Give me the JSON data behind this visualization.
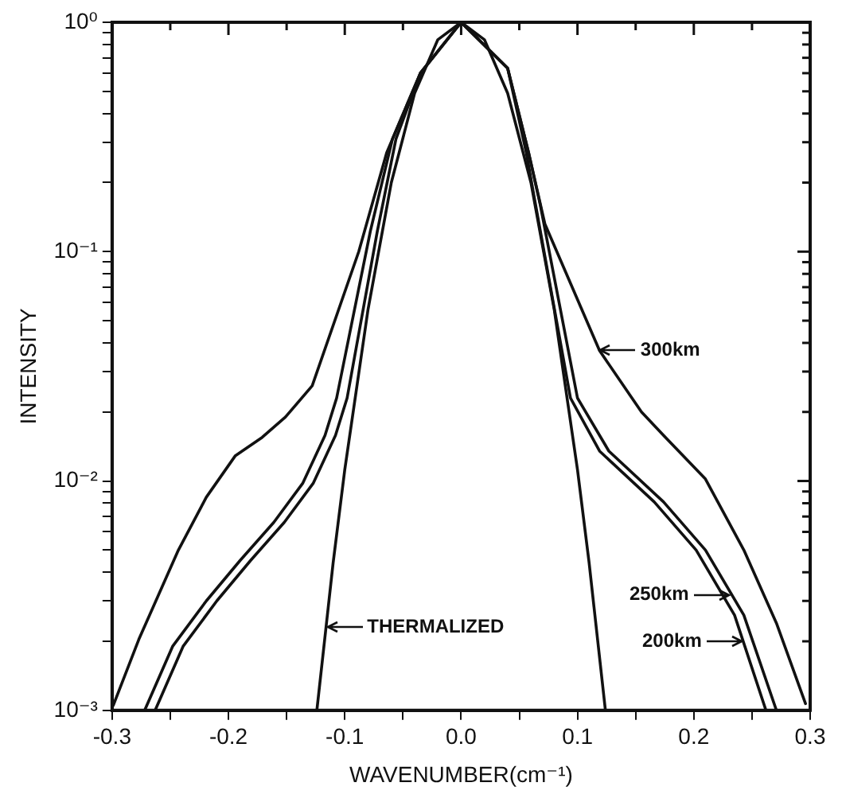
{
  "chart_data": {
    "type": "line",
    "xlabel": "WAVENUMBER(cm⁻¹)",
    "ylabel": "INTENSITY",
    "log": "y",
    "grid": false,
    "legend": false,
    "marker": "none",
    "line_style": "solid",
    "xlim": [
      -0.3,
      0.3
    ],
    "ylim": [
      0.001,
      1
    ],
    "xticks": [
      -0.3,
      {
        "value": -0.25,
        "label": null
      },
      -0.2,
      {
        "value": -0.15,
        "label": null
      },
      -0.1,
      {
        "value": -0.05,
        "label": null
      },
      {
        "value": 0,
        "label": "0.0"
      },
      {
        "value": 0.05,
        "label": null
      },
      0.1,
      {
        "value": 0.15,
        "label": null
      },
      0.2,
      {
        "value": 0.25,
        "label": null
      },
      0.3
    ],
    "yticks": [
      {
        "value": 0.001,
        "label": "10⁻³"
      },
      {
        "value": 0.002,
        "label": null
      },
      {
        "value": 0.003,
        "label": null
      },
      {
        "value": 0.004,
        "label": null
      },
      {
        "value": 0.005,
        "label": null
      },
      {
        "value": 0.006,
        "label": null
      },
      {
        "value": 0.007,
        "label": null
      },
      {
        "value": 0.008,
        "label": null
      },
      {
        "value": 0.009,
        "label": null
      },
      {
        "value": 0.01,
        "label": "10⁻²"
      },
      {
        "value": 0.02,
        "label": null
      },
      {
        "value": 0.03,
        "label": null
      },
      {
        "value": 0.04,
        "label": null
      },
      {
        "value": 0.05,
        "label": null
      },
      {
        "value": 0.06,
        "label": null
      },
      {
        "value": 0.07,
        "label": null
      },
      {
        "value": 0.08,
        "label": null
      },
      {
        "value": 0.09,
        "label": null
      },
      {
        "value": 0.1,
        "label": "10⁻¹"
      },
      {
        "value": 0.2,
        "label": null
      },
      {
        "value": 0.3,
        "label": null
      },
      {
        "value": 0.4,
        "label": null
      },
      {
        "value": 0.5,
        "label": null
      },
      {
        "value": 0.6,
        "label": null
      },
      {
        "value": 0.7,
        "label": null
      },
      {
        "value": 0.8,
        "label": null
      },
      {
        "value": 0.9,
        "label": null
      },
      {
        "value": 1,
        "label": "10⁰"
      }
    ],
    "series": [
      {
        "color": "#111111",
        "x": [
          -0.299,
          -0.277,
          -0.243,
          -0.219,
          -0.194,
          -0.171,
          -0.151,
          -0.128,
          -0.088,
          -0.064,
          -0.035,
          0,
          0.04,
          0.058,
          0.072,
          0.119,
          0.155,
          0.174,
          0.21,
          0.243,
          0.271,
          0.296
        ],
        "values": [
          0.00105,
          0.00204,
          0.005,
          0.0085,
          0.0129,
          0.0155,
          0.019,
          0.026,
          0.1,
          0.27,
          0.6,
          1,
          0.63,
          0.27,
          0.132,
          0.037,
          0.02,
          0.0158,
          0.0102,
          0.005,
          0.0024,
          0.00107
        ]
      },
      {
        "color": "#111111",
        "x": [
          -0.272,
          -0.248,
          -0.219,
          -0.19,
          -0.161,
          -0.136,
          -0.117,
          -0.107,
          -0.078,
          -0.059,
          -0.035,
          0,
          0.04,
          0.058,
          0.068,
          0.1,
          0.127,
          0.174,
          0.21,
          0.243,
          0.271
        ],
        "values": [
          0.001,
          0.0019,
          0.003,
          0.0045,
          0.0066,
          0.0098,
          0.0158,
          0.023,
          0.123,
          0.31,
          0.6,
          1,
          0.63,
          0.27,
          0.16,
          0.023,
          0.0135,
          0.0081,
          0.005,
          0.0026,
          0.001
        ]
      },
      {
        "color": "#111111",
        "x": [
          -0.263,
          -0.239,
          -0.21,
          -0.181,
          -0.152,
          -0.127,
          -0.108,
          -0.098,
          -0.072,
          -0.056,
          -0.035,
          0,
          0.04,
          0.056,
          0.064,
          0.094,
          0.119,
          0.166,
          0.202,
          0.235,
          0.262
        ],
        "values": [
          0.001,
          0.0019,
          0.003,
          0.0045,
          0.0066,
          0.0098,
          0.0158,
          0.023,
          0.123,
          0.31,
          0.6,
          1,
          0.63,
          0.27,
          0.16,
          0.023,
          0.0135,
          0.0081,
          0.005,
          0.0026,
          0.001
        ]
      },
      {
        "color": "#111111",
        "x": [
          -0.124,
          -0.11,
          -0.1,
          -0.08,
          -0.06,
          -0.04,
          -0.02,
          0,
          0.02,
          0.04,
          0.06,
          0.08,
          0.1,
          0.11,
          0.124
        ],
        "values": [
          0.001,
          0.0044,
          0.0112,
          0.056,
          0.2,
          0.49,
          0.84,
          1,
          0.84,
          0.49,
          0.2,
          0.056,
          0.0112,
          0.0044,
          0.001
        ]
      }
    ],
    "annotations": [
      {
        "text": "300km",
        "x": 0.12,
        "y": 0.037
      },
      {
        "text": "250km",
        "x": 0.23,
        "y": 0.0032
      },
      {
        "text": "200km",
        "x": 0.241,
        "y": 0.002
      },
      {
        "text": "THERMALIZED",
        "x": -0.115,
        "y": 0.0023
      }
    ]
  }
}
